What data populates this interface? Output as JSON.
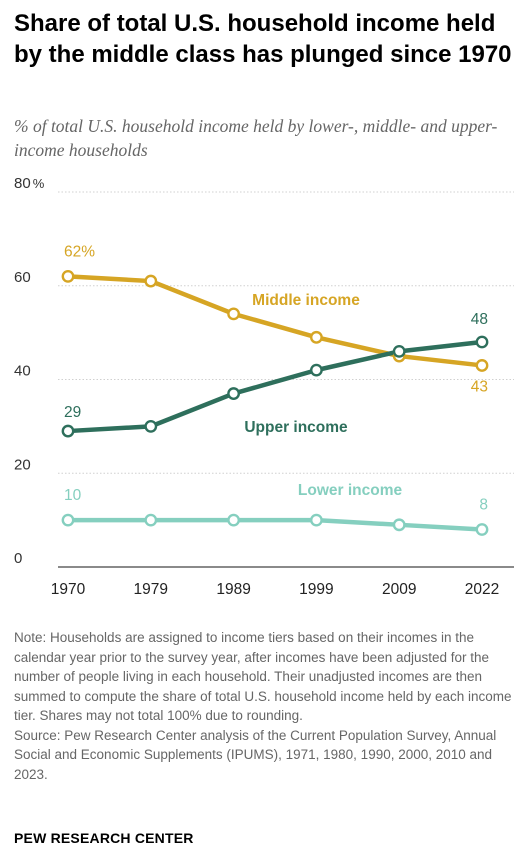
{
  "header": {
    "title": "Share of total U.S. household income held by the middle class has plunged since 1970",
    "subtitle": "% of total U.S. household income held by lower-, middle- and upper-income households"
  },
  "chart_data": {
    "type": "line",
    "x": [
      "1970",
      "1979",
      "1989",
      "1999",
      "2009",
      "2022"
    ],
    "ylim": [
      0,
      80
    ],
    "yticks": [
      0,
      20,
      40,
      60,
      80
    ],
    "ytick_labels": [
      "0",
      "20",
      "40",
      "60",
      "80"
    ],
    "y_unit_label": "%",
    "grid": true,
    "series": [
      {
        "name": "Middle income",
        "color": "#d6a524",
        "values": [
          62,
          61,
          54,
          49,
          45,
          43
        ],
        "start_label": "62%",
        "end_label": "43"
      },
      {
        "name": "Upper income",
        "color": "#2e6f5c",
        "values": [
          29,
          30,
          37,
          42,
          46,
          48
        ],
        "start_label": "29",
        "end_label": "48"
      },
      {
        "name": "Lower income",
        "color": "#85cfbf",
        "values": [
          10,
          10,
          10,
          10,
          9,
          8
        ],
        "start_label": "10",
        "end_label": "8"
      }
    ]
  },
  "notes": {
    "note": "Note: Households are assigned to income tiers based on their incomes in the calendar year prior to the survey year, after incomes have been adjusted for the number of people living in each household. Their unadjusted incomes are then summed to compute the share of total U.S. household income held by each income tier. Shares may not total 100% due to rounding.",
    "source": "Source: Pew Research Center analysis of the Current Population Survey, Annual Social and Economic Supplements (IPUMS), 1971, 1980, 1990, 2000, 2010 and 2023."
  },
  "footer": {
    "brand": "PEW RESEARCH CENTER"
  }
}
